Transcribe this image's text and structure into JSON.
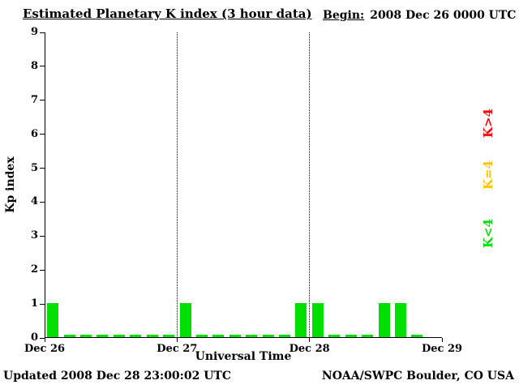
{
  "title": "Estimated Planetary K index (3 hour data)",
  "begin": {
    "label": "Begin:",
    "value": "2008 Dec 26 0000 UTC"
  },
  "footer": {
    "updated": "Updated 2008 Dec 28 23:00:02 UTC",
    "credit": "NOAA/SWPC Boulder, CO USA"
  },
  "legend": {
    "items": [
      {
        "label": "K>4",
        "color": "#ff0000"
      },
      {
        "label": "K=4",
        "color": "#ffc400"
      },
      {
        "label": "K<4",
        "color": "#00e000"
      }
    ]
  },
  "chart_data": {
    "type": "bar",
    "title": "Estimated Planetary K index (3 hour data)",
    "xlabel": "Universal Time",
    "ylabel": "Kp index",
    "ylim": [
      0,
      9
    ],
    "yticks": [
      0,
      1,
      2,
      3,
      4,
      5,
      6,
      7,
      8,
      9
    ],
    "x_day_labels": [
      "Dec 26",
      "Dec 27",
      "Dec 28",
      "Dec 29"
    ],
    "interval_hours": 3,
    "axis_total_intervals": 24,
    "gridlines_dotted_at": [
      "Dec 27",
      "Dec 28"
    ],
    "bar_colors": {
      "below4": "#00e000",
      "equal4": "#ffc400",
      "above4": "#ff0000"
    },
    "series": [
      {
        "name": "Kp",
        "start": "2008 Dec 26 0000 UTC",
        "values": [
          1,
          0,
          0,
          0,
          0,
          0,
          0,
          0,
          1,
          0,
          0,
          0,
          0,
          0,
          0,
          1,
          1,
          0,
          0,
          0,
          1,
          1,
          0
        ]
      }
    ]
  }
}
